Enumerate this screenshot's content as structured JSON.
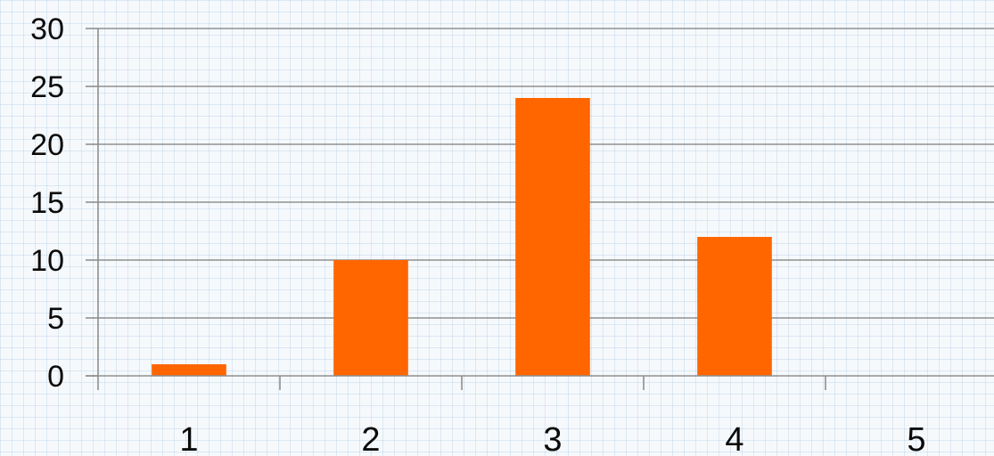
{
  "chart_data": {
    "type": "bar",
    "categories": [
      "1",
      "2",
      "3",
      "4",
      "5"
    ],
    "values": [
      1,
      10,
      24,
      12,
      0
    ],
    "title": "",
    "xlabel": "",
    "ylabel": "",
    "ylim": [
      0,
      30
    ],
    "yticks": [
      0,
      5,
      10,
      15,
      20,
      25,
      30
    ],
    "grid": true,
    "legend": "none",
    "colors": {
      "bar": "#ff6600",
      "gridline": "#8f8f8f",
      "axis": "#8f8f8f",
      "text": "#0a0a0a"
    }
  }
}
